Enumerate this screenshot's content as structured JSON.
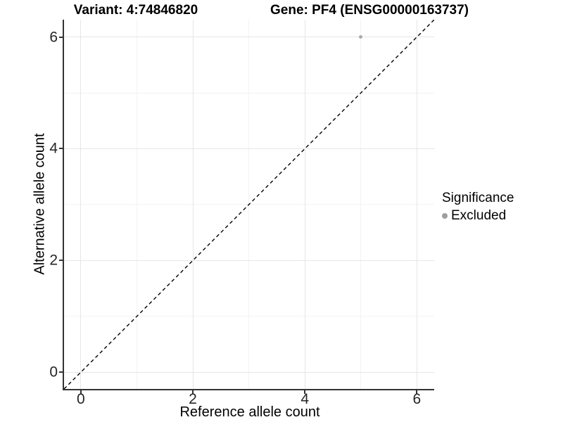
{
  "chart_data": {
    "type": "scatter",
    "titles": [
      "Variant: 4:74846820",
      "Gene: PF4 (ENSG00000163737)"
    ],
    "xlabel": "Reference allele count",
    "ylabel": "Alternative allele count",
    "xlim": [
      -0.3,
      6.31
    ],
    "ylim": [
      -0.3,
      6.31
    ],
    "x_ticks": [
      0,
      2,
      4,
      6
    ],
    "y_ticks": [
      0,
      2,
      4,
      6
    ],
    "x_minor_ticks": [
      1,
      3,
      5
    ],
    "y_minor_ticks": [
      1,
      3,
      5
    ],
    "grid": "major+minor, light gray on white",
    "reference_line": {
      "kind": "identity y=x",
      "style": "dashed",
      "color": "#000000"
    },
    "series": [
      {
        "name": "Excluded",
        "color": "#ababab",
        "point_radius": 2.5,
        "points": [
          [
            5,
            6
          ]
        ]
      }
    ],
    "legend": {
      "title": "Significance",
      "position": "right",
      "items": [
        {
          "label": "Excluded",
          "color": "#9e9e9e"
        }
      ]
    }
  },
  "colors": {
    "background": "#ffffff",
    "grid_major": "#e6e6e6",
    "grid_minor": "#f3f3f3",
    "axis_line": "#333333",
    "tick_text": "#262626",
    "title_text": "#000000"
  }
}
